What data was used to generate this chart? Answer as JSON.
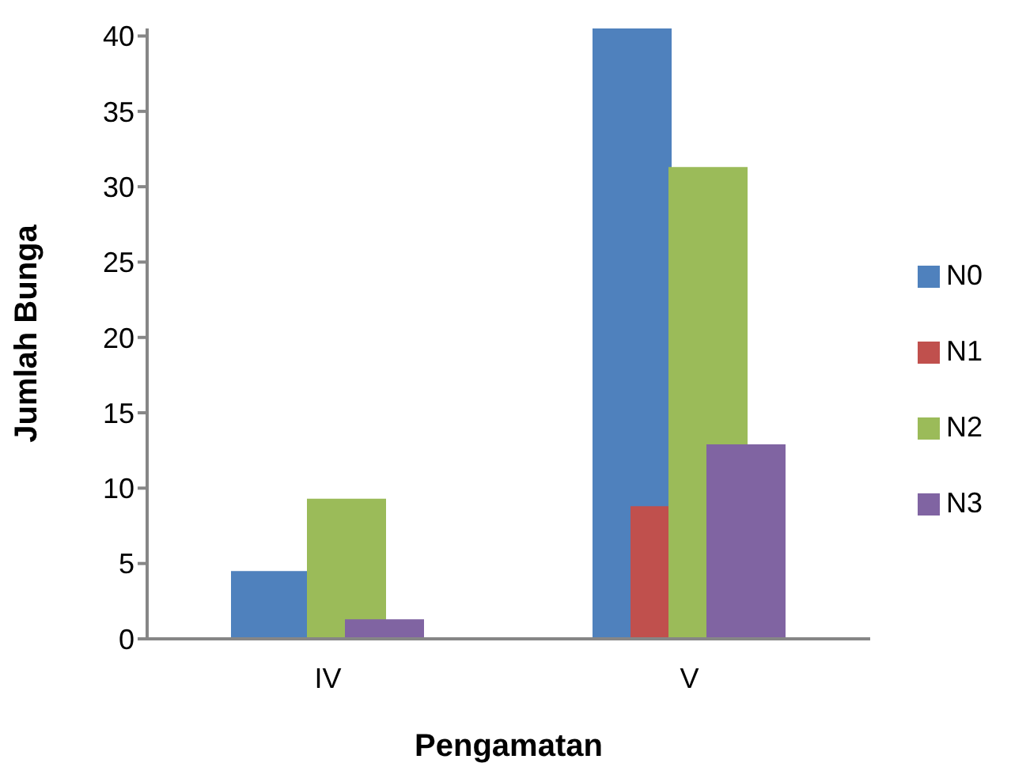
{
  "chart_data": {
    "type": "bar",
    "xlabel": "Pengamatan",
    "ylabel": "Jumlah Bunga",
    "categories": [
      "IV",
      "V"
    ],
    "series": [
      {
        "name": "N0",
        "color": "#4f81bd",
        "values": [
          4.5,
          40.5
        ]
      },
      {
        "name": "N1",
        "color": "#c0504d",
        "values": [
          0,
          8.8
        ]
      },
      {
        "name": "N2",
        "color": "#9bbb59",
        "values": [
          9.3,
          31.3
        ]
      },
      {
        "name": "N3",
        "color": "#8064a2",
        "values": [
          1.3,
          12.9
        ]
      }
    ],
    "ylim": [
      0,
      40.5
    ],
    "yticks": [
      0,
      5,
      10,
      15,
      20,
      25,
      30,
      35,
      40
    ],
    "grid": false,
    "legend": "right"
  }
}
